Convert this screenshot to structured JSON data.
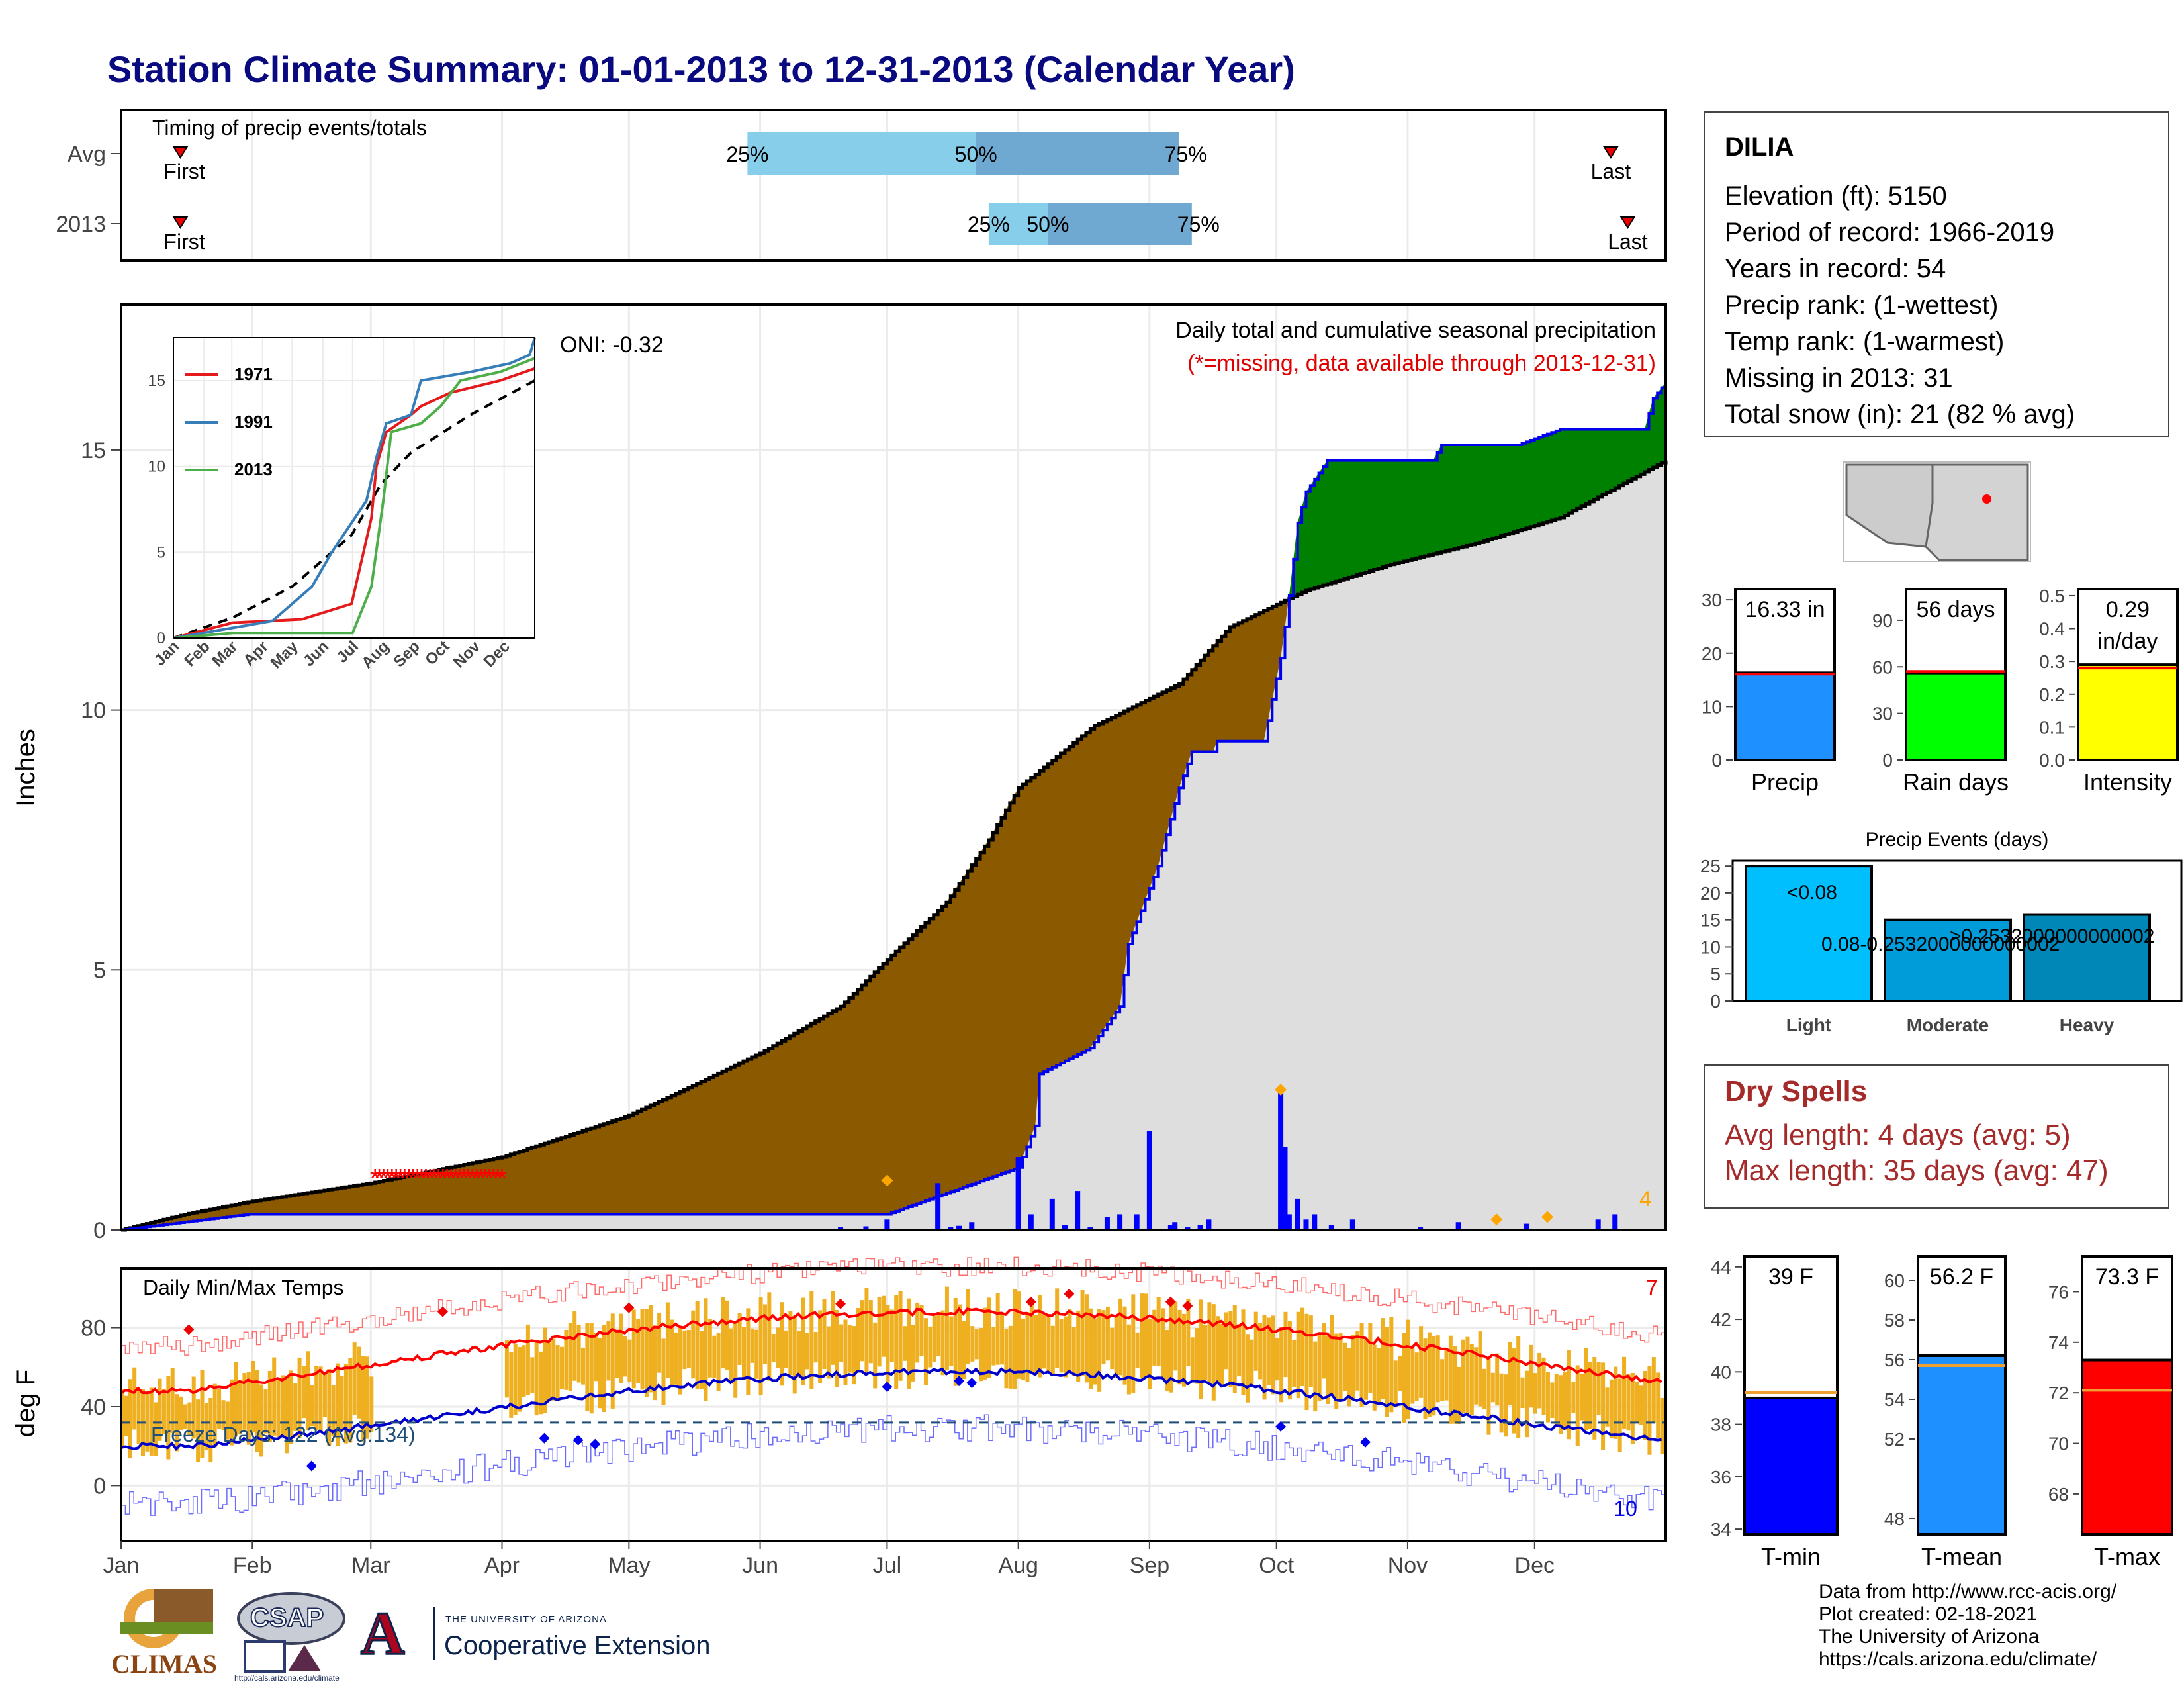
{
  "title": "Station Climate Summary: 01-01-2013 to 12-31-2013 (Calendar Year)",
  "station": {
    "name": "DILIA",
    "lines": [
      "Elevation (ft): 5150",
      "Period of record: 1966-2019",
      "Years in record: 54",
      "Precip rank:  (1-wettest)",
      "Temp rank:  (1-warmest)",
      "Missing in 2013: 31",
      "Total snow (in): 21 (82 % avg)"
    ]
  },
  "dry_spells": {
    "title": "Dry Spells",
    "avg_length": "Avg length: 4 days (avg: 5)",
    "max_length": "Max length: 35 days (avg: 47)"
  },
  "credits": [
    "Data from http://www.rcc-acis.org/",
    "Plot created: 02-18-2021",
    "The University of Arizona",
    "https://cals.arizona.edu/climate/"
  ],
  "logos": {
    "climas": "CLIMAS",
    "csap": "CSAP",
    "csap_url": "http://cals.arizona.edu/climate",
    "ua_top": "THE UNIVERSITY OF ARIZONA",
    "ua_bottom": "Cooperative Extension",
    "ua_letter": "A"
  },
  "colors": {
    "title": "#0a0a80",
    "brown": "#8b5a00",
    "green": "#008000",
    "gray_fill": "#dedede",
    "bars": "#0000ff",
    "temp_bar": "#eeb021",
    "red_line": "#ff0000",
    "blue_line": "#0000cd"
  },
  "chart_data": [
    {
      "type": "bar",
      "name": "timing",
      "title": "Timing of precip events/totals",
      "rows": [
        {
          "label": "Avg",
          "first": "First",
          "last": "Last",
          "first_day": 14,
          "last_day": 352,
          "p25": 148,
          "p50": 202,
          "p75": 250
        },
        {
          "label": "2013",
          "first": "First",
          "last": "Last",
          "first_day": 14,
          "last_day": 356,
          "p25": 205,
          "p50": 219,
          "p75": 253
        }
      ],
      "markers": [
        "25%",
        "50%",
        "75%"
      ]
    },
    {
      "type": "area",
      "name": "precip",
      "title": "Daily total and cumulative seasonal precipitation",
      "subtitle": "(*=missing, data available through 2013-12-31)",
      "oni": "ONI: -0.32",
      "ylabel": "Inches",
      "ylim": [
        0,
        17.8
      ],
      "yticks": [
        0,
        5,
        10,
        15
      ],
      "months": [
        "Jan",
        "Feb",
        "Mar",
        "Apr",
        "May",
        "Jun",
        "Jul",
        "Aug",
        "Sep",
        "Oct",
        "Nov",
        "Dec"
      ],
      "corner_count": "4",
      "avg_cumulative": [
        [
          0,
          0
        ],
        [
          15,
          0.3
        ],
        [
          31,
          0.55
        ],
        [
          59,
          0.9
        ],
        [
          90,
          1.4
        ],
        [
          120,
          2.2
        ],
        [
          151,
          3.4
        ],
        [
          170,
          4.3
        ],
        [
          181,
          5.2
        ],
        [
          195,
          6.3
        ],
        [
          205,
          7.5
        ],
        [
          212,
          8.5
        ],
        [
          230,
          9.7
        ],
        [
          250,
          10.5
        ],
        [
          262,
          11.6
        ],
        [
          280,
          12.3
        ],
        [
          300,
          12.8
        ],
        [
          320,
          13.2
        ],
        [
          340,
          13.7
        ],
        [
          365,
          14.8
        ]
      ],
      "cumulative_2013": [
        [
          0,
          0
        ],
        [
          30,
          0.3
        ],
        [
          181,
          0.3
        ],
        [
          212,
          1.2
        ],
        [
          216,
          2.0
        ],
        [
          217,
          3.0
        ],
        [
          229,
          3.5
        ],
        [
          236,
          4.3
        ],
        [
          238,
          5.5
        ],
        [
          245,
          7.0
        ],
        [
          250,
          8.5
        ],
        [
          253,
          9.2
        ],
        [
          258,
          9.2
        ],
        [
          259,
          9.4
        ],
        [
          270,
          9.4
        ],
        [
          274,
          11.0
        ],
        [
          276,
          12.2
        ],
        [
          278,
          13.6
        ],
        [
          280,
          14.2
        ],
        [
          285,
          14.8
        ],
        [
          310,
          14.8
        ],
        [
          312,
          15.1
        ],
        [
          330,
          15.1
        ],
        [
          340,
          15.4
        ],
        [
          360,
          15.4
        ],
        [
          362,
          16.0
        ],
        [
          365,
          16.3
        ]
      ],
      "daily_bars": [
        [
          170,
          0.05
        ],
        [
          176,
          0.07
        ],
        [
          181,
          0.2
        ],
        [
          193,
          0.9
        ],
        [
          196,
          0.05
        ],
        [
          198,
          0.08
        ],
        [
          201,
          0.15
        ],
        [
          212,
          1.4
        ],
        [
          215,
          0.3
        ],
        [
          220,
          0.6
        ],
        [
          223,
          0.1
        ],
        [
          226,
          0.75
        ],
        [
          229,
          0.05
        ],
        [
          233,
          0.25
        ],
        [
          236,
          0.3
        ],
        [
          240,
          0.3
        ],
        [
          243,
          1.9
        ],
        [
          248,
          0.1
        ],
        [
          249,
          0.15
        ],
        [
          252,
          0.05
        ],
        [
          255,
          0.1
        ],
        [
          257,
          0.2
        ],
        [
          274,
          2.7
        ],
        [
          275,
          1.6
        ],
        [
          276,
          0.3
        ],
        [
          278,
          0.6
        ],
        [
          280,
          0.2
        ],
        [
          282,
          0.3
        ],
        [
          286,
          0.1
        ],
        [
          291,
          0.2
        ],
        [
          307,
          0.05
        ],
        [
          316,
          0.15
        ],
        [
          332,
          0.12
        ],
        [
          349,
          0.2
        ],
        [
          353,
          0.3
        ]
      ],
      "missing_days": [
        60,
        61,
        62,
        63,
        64,
        65,
        66,
        67,
        68,
        69,
        70,
        71,
        72,
        73,
        74,
        75,
        76,
        77,
        78,
        79,
        80,
        81,
        82,
        83,
        84,
        85,
        86,
        87,
        88,
        89,
        90
      ],
      "orange_days": [
        [
          181,
          0.95
        ],
        [
          274,
          2.7
        ],
        [
          325,
          0.2
        ],
        [
          337,
          0.25
        ]
      ]
    },
    {
      "type": "line",
      "name": "inset",
      "series": [
        {
          "name": "1971",
          "color": "#e41a1c"
        },
        {
          "name": "1991",
          "color": "#377eb8"
        },
        {
          "name": "2013",
          "color": "#4daf4a"
        }
      ],
      "yticks": [
        0,
        5,
        10,
        15
      ],
      "ylim": [
        0,
        17.5
      ],
      "months": [
        "Jan",
        "Feb",
        "Mar",
        "Apr",
        "May",
        "Jun",
        "Jul",
        "Aug",
        "Sep",
        "Oct",
        "Nov",
        "Dec"
      ],
      "avg": [
        [
          0,
          0
        ],
        [
          60,
          1.2
        ],
        [
          120,
          3.0
        ],
        [
          180,
          6.0
        ],
        [
          210,
          9.0
        ],
        [
          240,
          10.8
        ],
        [
          300,
          13.0
        ],
        [
          365,
          15.0
        ]
      ],
      "s1971": [
        [
          0,
          0
        ],
        [
          60,
          0.9
        ],
        [
          130,
          1.1
        ],
        [
          180,
          2.0
        ],
        [
          200,
          7.0
        ],
        [
          205,
          10.0
        ],
        [
          215,
          12.0
        ],
        [
          240,
          13.0
        ],
        [
          250,
          13.5
        ],
        [
          280,
          14.3
        ],
        [
          330,
          15.0
        ],
        [
          365,
          15.7
        ]
      ],
      "s1991": [
        [
          0,
          0
        ],
        [
          50,
          0.5
        ],
        [
          100,
          1.0
        ],
        [
          140,
          3.0
        ],
        [
          160,
          5.0
        ],
        [
          195,
          8.0
        ],
        [
          205,
          10.5
        ],
        [
          215,
          12.5
        ],
        [
          240,
          13.0
        ],
        [
          250,
          15.0
        ],
        [
          300,
          15.5
        ],
        [
          340,
          16.0
        ],
        [
          360,
          16.5
        ],
        [
          365,
          17.5
        ]
      ],
      "s2013": [
        [
          0,
          0
        ],
        [
          60,
          0.3
        ],
        [
          181,
          0.3
        ],
        [
          200,
          3.0
        ],
        [
          212,
          8.0
        ],
        [
          220,
          12.0
        ],
        [
          250,
          12.5
        ],
        [
          270,
          13.5
        ],
        [
          290,
          15.0
        ],
        [
          330,
          15.5
        ],
        [
          365,
          16.3
        ]
      ]
    },
    {
      "type": "line",
      "name": "temps",
      "title": "Daily Min/Max Temps",
      "ylabel": "deg F",
      "ylim": [
        -28,
        110
      ],
      "yticks": [
        0,
        40,
        80
      ],
      "freeze": "Freeze Days: 122 (Avg:134)",
      "freeze_level": 32,
      "count_top": "7",
      "count_bottom": "10",
      "months": [
        "Jan",
        "Feb",
        "Mar",
        "Apr",
        "May",
        "Jun",
        "Jul",
        "Aug",
        "Sep",
        "Oct",
        "Nov",
        "Dec"
      ]
    },
    {
      "type": "bar",
      "name": "precip_totals",
      "panels": [
        {
          "label": "Precip",
          "value": 16.33,
          "text": "16.33 in",
          "avg": 16.1,
          "max": 32,
          "ticks": [
            0,
            10,
            20,
            30
          ],
          "color": "#1e90ff"
        },
        {
          "label": "Rain days",
          "value": 56,
          "text": "56 days",
          "avg": 57,
          "max": 110,
          "ticks": [
            0,
            30,
            60,
            90
          ],
          "color": "#00ff00"
        },
        {
          "label": "Intensity",
          "value": 0.29,
          "text": "0.29",
          "text2": "in/day",
          "avg": 0.28,
          "max": 0.52,
          "ticks": [
            0.0,
            0.1,
            0.2,
            0.3,
            0.4,
            0.5
          ],
          "color": "#ffff00"
        }
      ]
    },
    {
      "type": "bar",
      "name": "precip_events",
      "title": "Precip Events (days)",
      "categories": [
        "Light",
        "Moderate",
        "Heavy"
      ],
      "values": [
        25,
        15,
        16
      ],
      "labels": [
        "<0.08",
        "0.08-0.2532000000000002",
        ">0.2532000000000002"
      ],
      "ticks": [
        0,
        5,
        10,
        15,
        20,
        25
      ],
      "ylim": [
        0,
        26
      ],
      "colors": [
        "#00bfff",
        "#009bd9",
        "#0087b8"
      ]
    },
    {
      "type": "bar",
      "name": "temp_totals",
      "panels": [
        {
          "label": "T-min",
          "value": 39,
          "text": "39 F",
          "avg": 39.2,
          "ylim": [
            33.8,
            44.4
          ],
          "ticks": [
            34,
            36,
            38,
            40,
            42,
            44
          ],
          "color": "#0000ff"
        },
        {
          "label": "T-mean",
          "value": 56.2,
          "text": "56.2 F",
          "avg": 55.7,
          "ylim": [
            47.2,
            61.2
          ],
          "ticks": [
            48,
            52,
            54,
            56,
            58,
            60
          ],
          "color": "#1e90ff"
        },
        {
          "label": "T-max",
          "value": 73.3,
          "text": "73.3 F",
          "avg": 72.1,
          "ylim": [
            66.4,
            77.4
          ],
          "ticks": [
            68,
            70,
            72,
            74,
            76
          ],
          "color": "#ff0000"
        }
      ]
    }
  ]
}
